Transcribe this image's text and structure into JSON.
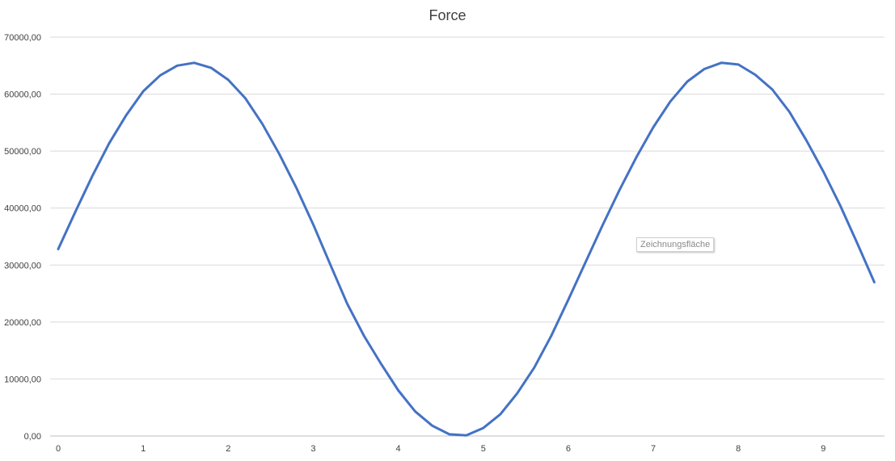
{
  "chart_data": {
    "type": "line",
    "title": "Force",
    "xlabel": "",
    "ylabel": "",
    "ylim": [
      0,
      70000
    ],
    "xlim": [
      0,
      9.6
    ],
    "grid": true,
    "legend": "none",
    "y_ticks": [
      "0,00",
      "10000,00",
      "20000,00",
      "30000,00",
      "40000,00",
      "50000,00",
      "60000,00",
      "70000,00"
    ],
    "x_ticks": [
      "0",
      "1",
      "2",
      "3",
      "4",
      "5",
      "6",
      "7",
      "8",
      "9"
    ],
    "series": [
      {
        "color": "#4472C4",
        "x": [
          0,
          0.2,
          0.4,
          0.6,
          0.8,
          1.0,
          1.2,
          1.4,
          1.6,
          1.8,
          2.0,
          2.2,
          2.4,
          2.6,
          2.8,
          3.0,
          3.2,
          3.4,
          3.6,
          3.8,
          4.0,
          4.2,
          4.4,
          4.6,
          4.8,
          5.0,
          5.2,
          5.4,
          5.6,
          5.8,
          6.0,
          6.2,
          6.4,
          6.6,
          6.8,
          7.0,
          7.2,
          7.4,
          7.6,
          7.8,
          8.0,
          8.2,
          8.4,
          8.6,
          8.8,
          9.0,
          9.2,
          9.4,
          9.6
        ],
        "values": [
          32800,
          39300,
          45600,
          51400,
          56300,
          60500,
          63300,
          65000,
          65500,
          64600,
          62500,
          59300,
          54800,
          49500,
          43600,
          37100,
          30100,
          23200,
          17500,
          12600,
          8000,
          4300,
          1800,
          300,
          100,
          1400,
          3800,
          7500,
          12000,
          17600,
          23900,
          30400,
          36900,
          43100,
          48900,
          54200,
          58700,
          62200,
          64400,
          65500,
          65200,
          63400,
          60800,
          56900,
          51900,
          46400,
          40400,
          33800,
          27000
        ]
      }
    ]
  },
  "tooltip": "Zeichnungsfläche"
}
